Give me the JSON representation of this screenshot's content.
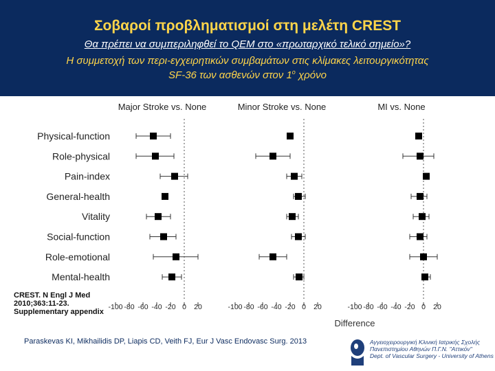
{
  "header": {
    "title": "Σοβαροί προβληματισμοί στη μελέτη CREST",
    "subtitle1": "Θα πρέπει να συμπεριληφθεί το QEM στο «πρωταρχικό τελικό σημείο»?",
    "subtitle2": "Η συμμετοχή των περι-εγχειρητικών συμβαμάτων στις κλίμακες λειτουργικότητας",
    "subtitle3_pre": "SF-36 των ασθενών στον 1",
    "subtitle3_sup": "ο",
    "subtitle3_post": " χρόνο"
  },
  "citation": {
    "line1": "CREST. N Engl J Med",
    "line2": "2010;363:11-23.",
    "line3": "Supplementary appendix"
  },
  "footer": {
    "reference": "Paraskevas KI, Mikhailidis DP, Liapis CD, Veith FJ, Eur J Vasc Endovasc Surg. 2013",
    "institution_line1": "Αγγειοχειρουργική Κλινική Ιατρικής Σχολής",
    "institution_line2": "Πανεπιστημίου Αθηνών Π.Γ.Ν. \"Αττικόν\"",
    "institution_line3": "Dept. of Vascular Surgery - University of Athens"
  },
  "colors": {
    "header_bg": "#0b2a5e",
    "title": "#ffd54a",
    "text": "#ffffff",
    "marker": "#000000"
  },
  "chart_data": {
    "type": "forest",
    "xlabel": "Difference",
    "categories": [
      "Physical-function",
      "Role-physical",
      "Pain-index",
      "General-health",
      "Vitality",
      "Social-function",
      "Role-emotional",
      "Mental-health"
    ],
    "ticks": [
      -100,
      -80,
      -60,
      -40,
      -20,
      0,
      20
    ],
    "tick_labels": [
      "-100",
      "-80",
      "-60",
      "-40",
      "-20",
      "0",
      "20"
    ],
    "panels": [
      {
        "name": "Major Stroke vs. None",
        "xlim": [
          -100,
          20
        ],
        "points": [
          {
            "est": -45,
            "lo": -70,
            "hi": -20
          },
          {
            "est": -42,
            "lo": -70,
            "hi": -15
          },
          {
            "est": -14,
            "lo": -35,
            "hi": 5
          },
          {
            "est": -28,
            "lo": -30,
            "hi": -25
          },
          {
            "est": -38,
            "lo": -55,
            "hi": -20
          },
          {
            "est": -30,
            "lo": -50,
            "hi": -12
          },
          {
            "est": -12,
            "lo": -45,
            "hi": 20
          },
          {
            "est": -18,
            "lo": -32,
            "hi": -4
          }
        ]
      },
      {
        "name": "Minor Stroke vs. None",
        "xlim": [
          -100,
          20
        ],
        "points": [
          {
            "est": -20,
            "lo": -22,
            "hi": -18
          },
          {
            "est": -45,
            "lo": -70,
            "hi": -20
          },
          {
            "est": -14,
            "lo": -25,
            "hi": -3
          },
          {
            "est": -8,
            "lo": -15,
            "hi": 2
          },
          {
            "est": -17,
            "lo": -25,
            "hi": -8
          },
          {
            "est": -8,
            "lo": -18,
            "hi": 2
          },
          {
            "est": -45,
            "lo": -65,
            "hi": -25
          },
          {
            "est": -7,
            "lo": -15,
            "hi": 0
          }
        ]
      },
      {
        "name": "MI vs. None",
        "xlim": [
          -100,
          20
        ],
        "points": [
          {
            "est": -7,
            "lo": -9,
            "hi": -5
          },
          {
            "est": -5,
            "lo": -30,
            "hi": 15
          },
          {
            "est": 4,
            "lo": 2,
            "hi": 6
          },
          {
            "est": -5,
            "lo": -18,
            "hi": 5
          },
          {
            "est": -2,
            "lo": -15,
            "hi": 8
          },
          {
            "est": -5,
            "lo": -20,
            "hi": 5
          },
          {
            "est": 0,
            "lo": -20,
            "hi": 20
          },
          {
            "est": 2,
            "lo": -2,
            "hi": 10
          }
        ]
      }
    ]
  }
}
